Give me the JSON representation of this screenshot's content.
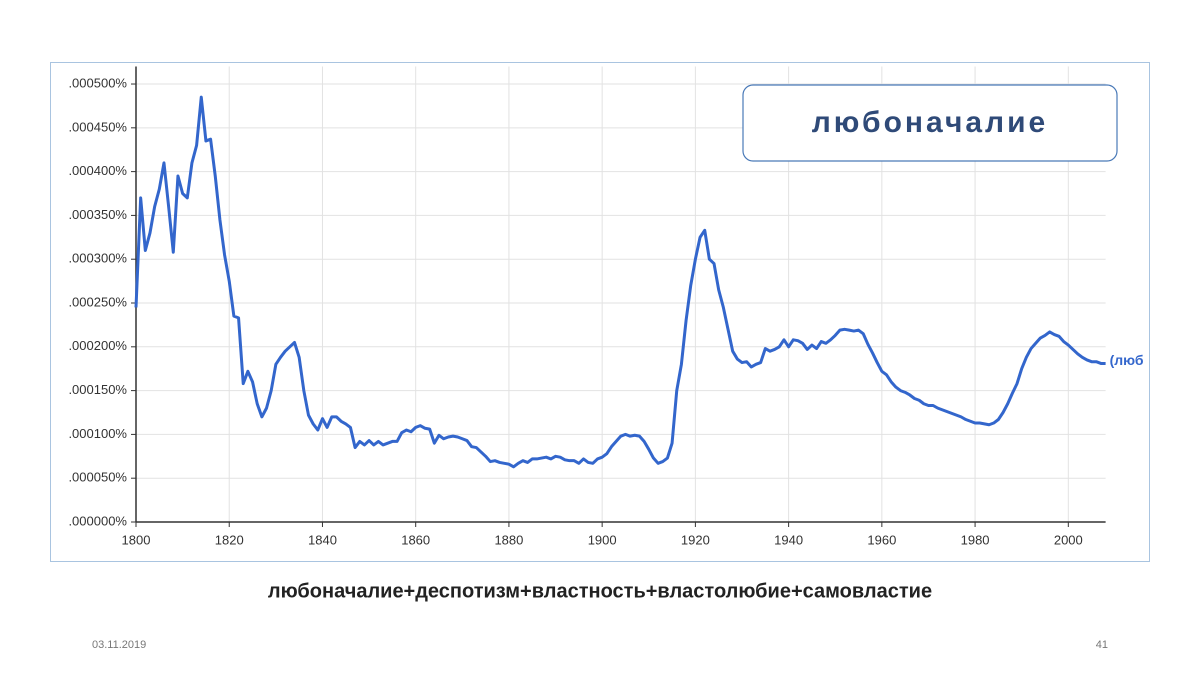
{
  "chart_data": {
    "type": "line",
    "title": "любоначалие",
    "caption": "любоначалие+деспотизм+властность+властолюбие+самовластие",
    "x": [
      1800,
      1801,
      1802,
      1803,
      1804,
      1805,
      1806,
      1807,
      1808,
      1809,
      1810,
      1811,
      1812,
      1813,
      1814,
      1815,
      1816,
      1817,
      1818,
      1819,
      1820,
      1821,
      1822,
      1823,
      1824,
      1825,
      1826,
      1827,
      1828,
      1829,
      1830,
      1831,
      1832,
      1833,
      1834,
      1835,
      1836,
      1837,
      1838,
      1839,
      1840,
      1841,
      1842,
      1843,
      1844,
      1845,
      1846,
      1847,
      1848,
      1849,
      1850,
      1851,
      1852,
      1853,
      1854,
      1855,
      1856,
      1857,
      1858,
      1859,
      1860,
      1861,
      1862,
      1863,
      1864,
      1865,
      1866,
      1867,
      1868,
      1869,
      1870,
      1871,
      1872,
      1873,
      1874,
      1875,
      1876,
      1877,
      1878,
      1879,
      1880,
      1881,
      1882,
      1883,
      1884,
      1885,
      1886,
      1887,
      1888,
      1889,
      1890,
      1891,
      1892,
      1893,
      1894,
      1895,
      1896,
      1897,
      1898,
      1899,
      1900,
      1901,
      1902,
      1903,
      1904,
      1905,
      1906,
      1907,
      1908,
      1909,
      1910,
      1911,
      1912,
      1913,
      1914,
      1915,
      1916,
      1917,
      1918,
      1919,
      1920,
      1921,
      1922,
      1923,
      1924,
      1925,
      1926,
      1927,
      1928,
      1929,
      1930,
      1931,
      1932,
      1933,
      1934,
      1935,
      1936,
      1937,
      1938,
      1939,
      1940,
      1941,
      1942,
      1943,
      1944,
      1945,
      1946,
      1947,
      1948,
      1949,
      1950,
      1951,
      1952,
      1953,
      1954,
      1955,
      1956,
      1957,
      1958,
      1959,
      1960,
      1961,
      1962,
      1963,
      1964,
      1965,
      1966,
      1967,
      1968,
      1969,
      1970,
      1971,
      1972,
      1973,
      1974,
      1975,
      1976,
      1977,
      1978,
      1979,
      1980,
      1981,
      1982,
      1983,
      1984,
      1985,
      1986,
      1987,
      1988,
      1989,
      1990,
      1991,
      1992,
      1993,
      1994,
      1995,
      1996,
      1997,
      1998,
      1999,
      2000,
      2001,
      2002,
      2003,
      2004,
      2005,
      2006,
      2007,
      2008
    ],
    "series": [
      {
        "name": "(люб",
        "color": "#3366cc",
        "values": [
          0.000245,
          0.00037,
          0.00031,
          0.00033,
          0.00036,
          0.00038,
          0.00041,
          0.00036,
          0.000308,
          0.000395,
          0.000375,
          0.00037,
          0.00041,
          0.00043,
          0.000485,
          0.000435,
          0.000437,
          0.000395,
          0.000345,
          0.000305,
          0.000275,
          0.000235,
          0.000233,
          0.000158,
          0.000172,
          0.00016,
          0.000135,
          0.00012,
          0.00013,
          0.00015,
          0.00018,
          0.000188,
          0.000195,
          0.0002,
          0.000205,
          0.000188,
          0.00015,
          0.000122,
          0.000112,
          0.000105,
          0.000118,
          0.000108,
          0.00012,
          0.00012,
          0.000115,
          0.000112,
          0.000108,
          8.5e-05,
          9.2e-05,
          8.8e-05,
          9.3e-05,
          8.8e-05,
          9.2e-05,
          8.8e-05,
          9e-05,
          9.2e-05,
          9.2e-05,
          0.000102,
          0.000105,
          0.000103,
          0.000108,
          0.00011,
          0.000107,
          0.000106,
          9e-05,
          9.9e-05,
          9.5e-05,
          9.7e-05,
          9.8e-05,
          9.7e-05,
          9.5e-05,
          9.3e-05,
          8.6e-05,
          8.5e-05,
          8e-05,
          7.5e-05,
          6.9e-05,
          7e-05,
          6.8e-05,
          6.7e-05,
          6.6e-05,
          6.3e-05,
          6.7e-05,
          7e-05,
          6.8e-05,
          7.2e-05,
          7.2e-05,
          7.3e-05,
          7.4e-05,
          7.2e-05,
          7.5e-05,
          7.4e-05,
          7.1e-05,
          7e-05,
          7e-05,
          6.7e-05,
          7.2e-05,
          6.8e-05,
          6.7e-05,
          7.2e-05,
          7.4e-05,
          7.8e-05,
          8.6e-05,
          9.2e-05,
          9.8e-05,
          0.0001,
          9.8e-05,
          9.9e-05,
          9.8e-05,
          9.2e-05,
          8.3e-05,
          7.3e-05,
          6.7e-05,
          6.9e-05,
          7.3e-05,
          9e-05,
          0.00015,
          0.00018,
          0.00023,
          0.00027,
          0.0003,
          0.000325,
          0.000333,
          0.0003,
          0.000295,
          0.000265,
          0.000245,
          0.00022,
          0.000195,
          0.000186,
          0.000182,
          0.000183,
          0.000177,
          0.00018,
          0.000182,
          0.000198,
          0.000195,
          0.000197,
          0.0002,
          0.000208,
          0.0002,
          0.000208,
          0.000207,
          0.000204,
          0.000197,
          0.000202,
          0.000198,
          0.000206,
          0.000204,
          0.000208,
          0.000213,
          0.000219,
          0.00022,
          0.000219,
          0.000218,
          0.000219,
          0.000215,
          0.000203,
          0.000193,
          0.000182,
          0.000172,
          0.000168,
          0.00016,
          0.000154,
          0.00015,
          0.000148,
          0.000145,
          0.000141,
          0.000139,
          0.000135,
          0.000133,
          0.000133,
          0.00013,
          0.000128,
          0.000126,
          0.000124,
          0.000122,
          0.00012,
          0.000117,
          0.000115,
          0.000113,
          0.000113,
          0.000112,
          0.000111,
          0.000113,
          0.000117,
          0.000125,
          0.000135,
          0.000147,
          0.000158,
          0.000175,
          0.000188,
          0.000198,
          0.000204,
          0.00021,
          0.000213,
          0.000217,
          0.000214,
          0.000212,
          0.000206,
          0.000202,
          0.000197,
          0.000192,
          0.000188,
          0.000185,
          0.000183,
          0.000183,
          0.000181,
          0.000181
        ]
      }
    ],
    "xlim": [
      1800,
      2008
    ],
    "ylim": [
      0,
      0.00052
    ],
    "xticks": [
      1800,
      1820,
      1840,
      1860,
      1880,
      1900,
      1920,
      1940,
      1960,
      1980,
      2000
    ],
    "yticks": [
      {
        "value": 0,
        "label": ".000000%"
      },
      {
        "value": 5e-05,
        "label": ".000050%"
      },
      {
        "value": 0.0001,
        "label": ".000100%"
      },
      {
        "value": 0.00015,
        "label": ".000150%"
      },
      {
        "value": 0.0002,
        "label": ".000200%"
      },
      {
        "value": 0.00025,
        "label": ".000250%"
      },
      {
        "value": 0.0003,
        "label": ".000300%"
      },
      {
        "value": 0.00035,
        "label": ".000350%"
      },
      {
        "value": 0.0004,
        "label": ".000400%"
      },
      {
        "value": 0.00045,
        "label": ".000450%"
      },
      {
        "value": 0.0005,
        "label": ".000500%"
      }
    ],
    "grid": true
  },
  "footer": {
    "date": "03.11.2019",
    "page": "41"
  }
}
